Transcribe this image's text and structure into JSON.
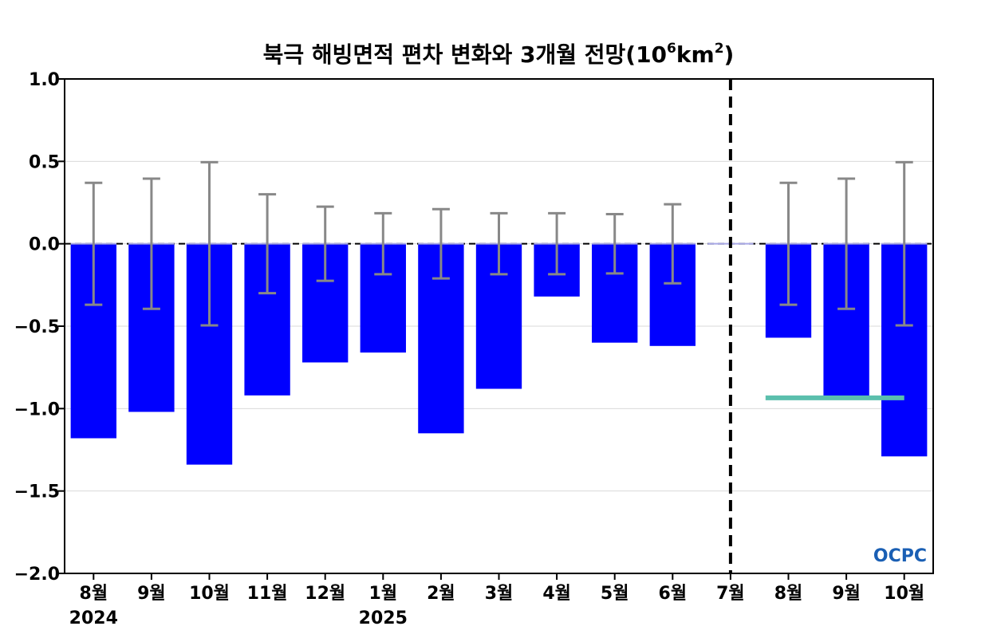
{
  "chart_data": {
    "type": "bar",
    "title": {
      "main": "북극 해빙면적 편차 변화와 3개월 전망(10",
      "sup1": "6",
      "mid": "km",
      "sup2": "2",
      "end": ")"
    },
    "xlabel": "",
    "ylabel": "",
    "ylim": [
      -2.0,
      1.0
    ],
    "yticks": [
      1.0,
      0.5,
      0.0,
      -0.5,
      -1.0,
      -1.5,
      -2.0
    ],
    "ytick_labels": [
      "1.0",
      "0.5",
      "0.0",
      "−0.5",
      "−1.0",
      "−1.5",
      "−2.0"
    ],
    "categories": [
      "8월",
      "9월",
      "10월",
      "11월",
      "12월",
      "1월",
      "2월",
      "3월",
      "4월",
      "5월",
      "6월",
      "7월",
      "8월",
      "9월",
      "10월"
    ],
    "year_labels": [
      {
        "index": 0,
        "label": "2024"
      },
      {
        "index": 5,
        "label": "2025"
      }
    ],
    "values": [
      -1.18,
      -1.02,
      -1.34,
      -0.92,
      -0.72,
      -0.66,
      -1.15,
      -0.88,
      -0.32,
      -0.6,
      -0.62,
      0.0,
      -0.57,
      -0.93,
      -1.29
    ],
    "error": [
      0.37,
      0.395,
      0.495,
      0.3,
      0.225,
      0.185,
      0.21,
      0.185,
      0.185,
      0.18,
      0.24,
      0.0,
      0.37,
      0.395,
      0.495
    ],
    "forecast_divider_index": 11,
    "forecast_line": {
      "from_index": 12,
      "to_index": 14,
      "value": -0.935
    },
    "bar_color": "#0000ff",
    "error_color": "#888888",
    "forecast_line_color": "#5bbfad",
    "grid": true,
    "legend": "none",
    "logo": "OCPC"
  }
}
